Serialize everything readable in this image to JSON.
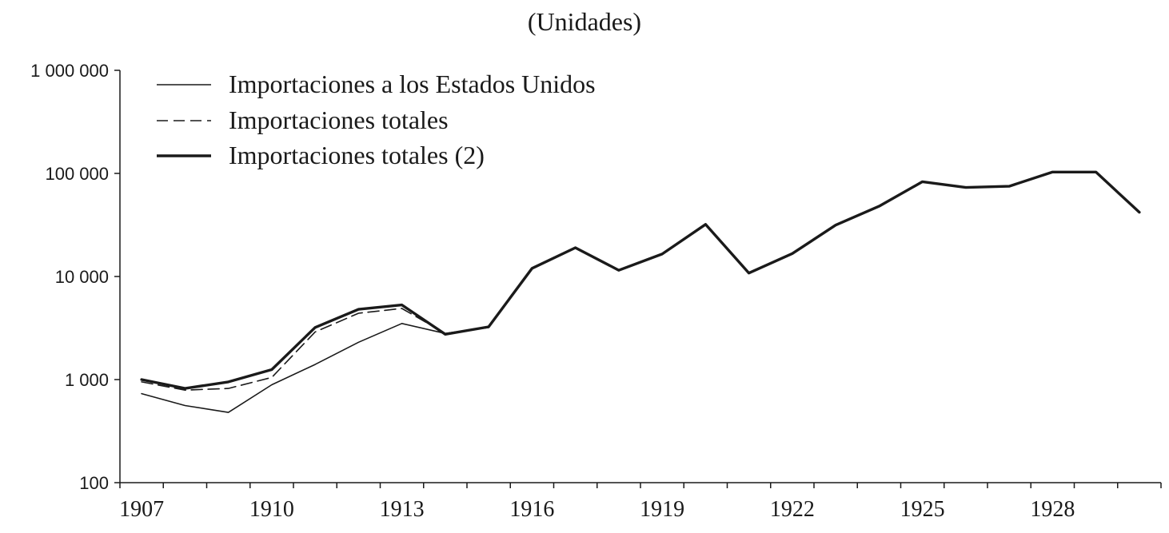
{
  "chart_data": {
    "type": "line",
    "title": "(Unidades)",
    "xlabel": "",
    "ylabel": "",
    "y_scale": "log",
    "ylim": [
      100,
      1000000
    ],
    "xlim": [
      1906.5,
      1930.5
    ],
    "y_ticks": [
      100,
      1000,
      10000,
      100000,
      1000000
    ],
    "y_tick_labels": [
      "100",
      "1 000",
      "10 000",
      "100 000",
      "1 000 000"
    ],
    "x_tick_labels": [
      "1907",
      "1910",
      "1913",
      "1916",
      "1919",
      "1922",
      "1925",
      "1928"
    ],
    "x_tick_values": [
      1907,
      1910,
      1913,
      1916,
      1919,
      1922,
      1925,
      1928
    ],
    "grid": false,
    "legend_position": "top-left",
    "series": [
      {
        "name": "Importaciones a los Estados Unidos",
        "style": "thin-solid",
        "x": [
          1907,
          1908,
          1909,
          1910,
          1911,
          1912,
          1913,
          1914,
          1915
        ],
        "values": [
          730,
          560,
          480,
          890,
          1400,
          2300,
          3500,
          2800,
          3200
        ]
      },
      {
        "name": "Importaciones totales",
        "style": "dashed",
        "x": [
          1907,
          1908,
          1909,
          1910,
          1911,
          1912,
          1913,
          1914,
          1915
        ],
        "values": [
          950,
          790,
          820,
          1050,
          2900,
          4400,
          4900,
          2800,
          3200
        ]
      },
      {
        "name": "Importaciones totales (2)",
        "style": "thick-solid",
        "x": [
          1907,
          1908,
          1909,
          1910,
          1911,
          1912,
          1913,
          1914,
          1915,
          1916,
          1917,
          1918,
          1919,
          1920,
          1921,
          1922,
          1923,
          1924,
          1925,
          1926,
          1927,
          1928,
          1929,
          1930
        ],
        "values": [
          1000,
          820,
          950,
          1250,
          3200,
          4800,
          5300,
          2750,
          3250,
          12000,
          19000,
          11500,
          16500,
          32000,
          10800,
          16700,
          31500,
          48000,
          83000,
          73000,
          75000,
          103000,
          103000,
          42000
        ]
      }
    ]
  }
}
